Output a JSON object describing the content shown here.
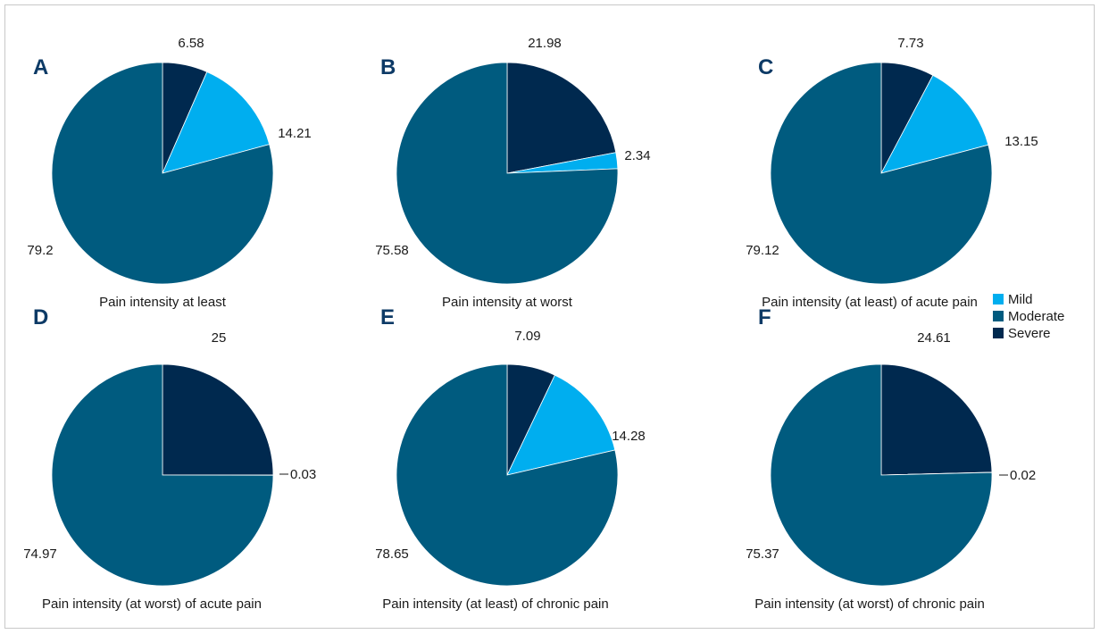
{
  "colors": {
    "Mild": "#00aeef",
    "Moderate": "#005b7f",
    "Severe": "#00294f",
    "panel_letter": "#0d3a66"
  },
  "legend": {
    "items": [
      "Mild",
      "Moderate",
      "Severe"
    ]
  },
  "chart_data": [
    {
      "type": "pie",
      "panel": "A",
      "caption": "Pain intensity at least",
      "slices": [
        {
          "category": "Severe",
          "value": 6.58,
          "label": "6.58"
        },
        {
          "category": "Mild",
          "value": 14.21,
          "label": "14.21"
        },
        {
          "category": "Moderate",
          "value": 79.2,
          "label": "79.2"
        }
      ]
    },
    {
      "type": "pie",
      "panel": "B",
      "caption": "Pain intensity at worst",
      "slices": [
        {
          "category": "Severe",
          "value": 21.98,
          "label": "21.98"
        },
        {
          "category": "Mild",
          "value": 2.34,
          "label": "2.34"
        },
        {
          "category": "Moderate",
          "value": 75.58,
          "label": "75.58"
        }
      ]
    },
    {
      "type": "pie",
      "panel": "C",
      "caption": "Pain intensity (at least) of acute pain",
      "slices": [
        {
          "category": "Severe",
          "value": 7.73,
          "label": "7.73"
        },
        {
          "category": "Mild",
          "value": 13.15,
          "label": "13.15"
        },
        {
          "category": "Moderate",
          "value": 79.12,
          "label": "79.12"
        }
      ]
    },
    {
      "type": "pie",
      "panel": "D",
      "caption": "Pain intensity (at worst) of acute pain",
      "slices": [
        {
          "category": "Severe",
          "value": 25,
          "label": "25"
        },
        {
          "category": "Mild",
          "value": 0.03,
          "label": "0.03"
        },
        {
          "category": "Moderate",
          "value": 74.97,
          "label": "74.97"
        }
      ]
    },
    {
      "type": "pie",
      "panel": "E",
      "caption": "Pain intensity (at least) of chronic pain",
      "slices": [
        {
          "category": "Severe",
          "value": 7.09,
          "label": "7.09"
        },
        {
          "category": "Mild",
          "value": 14.28,
          "label": "14.28"
        },
        {
          "category": "Moderate",
          "value": 78.65,
          "label": "78.65"
        }
      ]
    },
    {
      "type": "pie",
      "panel": "F",
      "caption": "Pain intensity (at worst) of chronic pain",
      "slices": [
        {
          "category": "Severe",
          "value": 24.61,
          "label": "24.61"
        },
        {
          "category": "Mild",
          "value": 0.02,
          "label": "0.02"
        },
        {
          "category": "Moderate",
          "value": 75.37,
          "label": "75.37"
        }
      ]
    }
  ]
}
